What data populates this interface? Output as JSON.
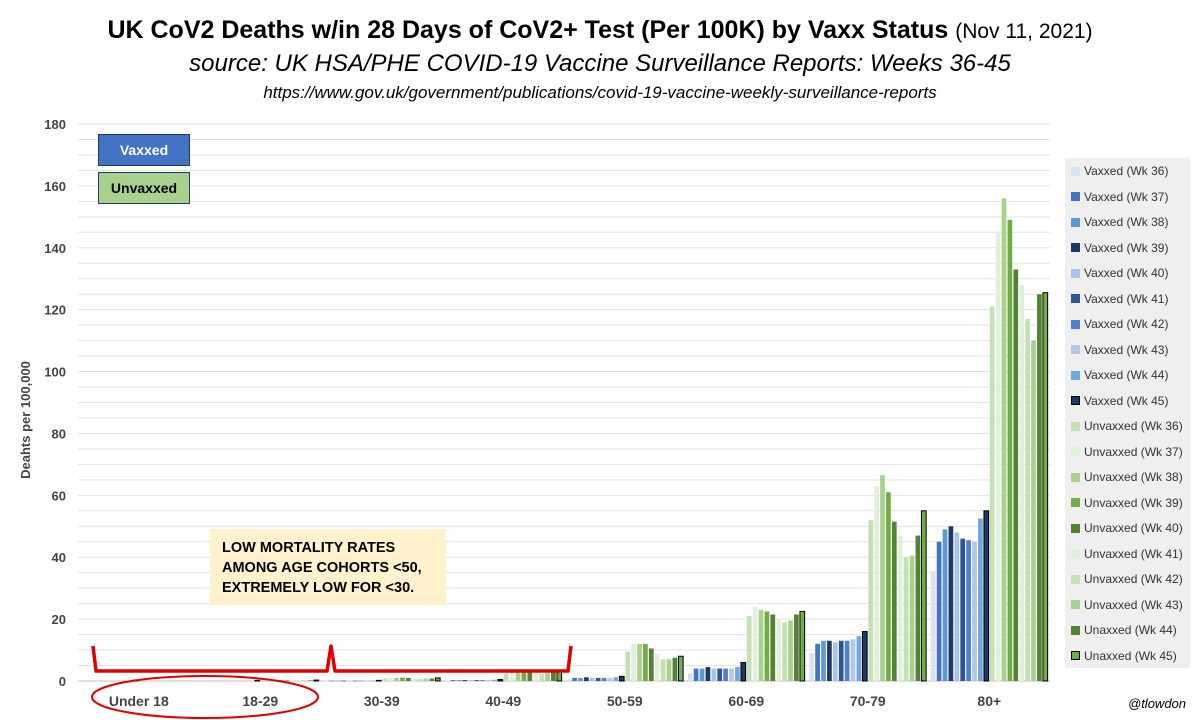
{
  "header": {
    "title": "UK CoV2 Deaths w/in 28 Days of CoV2+ Test (Per 100K) by Vaxx Status",
    "date": "(Nov 11, 2021)",
    "subtitle": "source: UK HSA/PHE COVID-19 Vaccine Surveillance Reports: Weeks 36-45",
    "url": "https://www.gov.uk/government/publications/covid-19-vaccine-weekly-surveillance-reports"
  },
  "key": {
    "vaxxed": "Vaxxed",
    "unvaxxed": "Unvaxxed"
  },
  "annotation": {
    "lines": [
      "LOW MORTALITY RATES",
      "AMONG AGE COHORTS <50,",
      "EXTREMELY LOW FOR <30."
    ]
  },
  "credit": "@tlowdon",
  "colors": {
    "vaxx_key": "#4472c4",
    "unvaxx_key": "#a9d18e",
    "bracket": "#e00000",
    "annotation_bg": "#fff2cc"
  },
  "chart_data": {
    "type": "bar",
    "ylabel": "Deahts per 100,000",
    "xlabel": "",
    "ylim": [
      0,
      180
    ],
    "yticks": [
      0,
      20,
      40,
      60,
      80,
      100,
      120,
      140,
      160,
      180
    ],
    "grid": true,
    "legend_position": "right",
    "categories": [
      "Under 18",
      "18-29",
      "30-39",
      "40-49",
      "50-59",
      "60-69",
      "70-79",
      "80+"
    ],
    "series": [
      {
        "name": "Vaxxed (Wk 36)",
        "color": "#d9e2f3",
        "values": [
          0,
          0,
          0.1,
          0.2,
          0.5,
          2.5,
          9,
          35.5
        ]
      },
      {
        "name": "Vaxxed (Wk 37)",
        "color": "#4472c4",
        "values": [
          0,
          0,
          0.1,
          0.3,
          1,
          4,
          12,
          45
        ]
      },
      {
        "name": "Vaxxed (Wk 38)",
        "color": "#5b9bd5",
        "values": [
          0,
          0,
          0.1,
          0.3,
          1,
          4,
          13,
          49
        ]
      },
      {
        "name": "Vaxxed (Wk 39)",
        "color": "#203864",
        "values": [
          0,
          0,
          0.1,
          0.3,
          1.2,
          4.5,
          13,
          50
        ]
      },
      {
        "name": "Vaxxed (Wk 40)",
        "color": "#a9c4eb",
        "values": [
          0,
          0,
          0.1,
          0.3,
          1,
          4,
          12.5,
          48
        ]
      },
      {
        "name": "Vaxxed (Wk 41)",
        "color": "#2e5597",
        "values": [
          0,
          0,
          0.1,
          0.3,
          1,
          4,
          13,
          46
        ]
      },
      {
        "name": "Vaxxed (Wk 42)",
        "color": "#4f81d1",
        "values": [
          0,
          0,
          0.1,
          0.3,
          1,
          4,
          13,
          45.5
        ]
      },
      {
        "name": "Vaxxed (Wk 43)",
        "color": "#b4c7e7",
        "values": [
          0,
          0,
          0.1,
          0.3,
          1,
          4,
          13.5,
          45
        ]
      },
      {
        "name": "Vaxxed (Wk 44)",
        "color": "#6fa8dc",
        "values": [
          0,
          0,
          0.1,
          0.4,
          1.2,
          4.5,
          14.5,
          52.5
        ]
      },
      {
        "name": "Vaxxed (Wk 45)",
        "color": "#1f3864",
        "outlined": true,
        "values": [
          0.3,
          0.2,
          0.2,
          0.5,
          1.5,
          6,
          16,
          55
        ]
      },
      {
        "name": "Unvaxxed (Wk 36)",
        "color": "#c5e0b4",
        "values": [
          0,
          0.2,
          0.8,
          2.5,
          9.5,
          21,
          52,
          121
        ]
      },
      {
        "name": "Unvaxxed (Wk 37)",
        "color": "#e2efda",
        "values": [
          0,
          0.3,
          1,
          3.5,
          12,
          24,
          63,
          145
        ]
      },
      {
        "name": "Unvaxxed (Wk 38)",
        "color": "#a9d18e",
        "values": [
          0,
          0.3,
          1,
          3.8,
          12,
          23,
          66.5,
          156
        ]
      },
      {
        "name": "Unvaxxed (Wk 39)",
        "color": "#70ad47",
        "values": [
          0,
          0.3,
          1.1,
          3.5,
          12,
          22.5,
          61,
          149
        ]
      },
      {
        "name": "Unvaxxed (Wk 40)",
        "color": "#548235",
        "values": [
          0,
          0.2,
          1,
          3,
          10.5,
          21.5,
          51.5,
          133
        ]
      },
      {
        "name": "Unvaxxed (Wk 41)",
        "color": "#e2efda",
        "values": [
          0,
          0.2,
          0.7,
          2.5,
          9,
          20,
          47,
          128
        ]
      },
      {
        "name": "Unvaxxed (Wk 42)",
        "color": "#c5e0b4",
        "values": [
          0,
          0.2,
          0.7,
          2.3,
          7,
          19,
          40,
          117
        ]
      },
      {
        "name": "Unvaxxed (Wk 43)",
        "color": "#a9d18e",
        "values": [
          0,
          0.2,
          0.8,
          2.5,
          7,
          19.5,
          40.5,
          110
        ]
      },
      {
        "name": "Unaxxed (Wk 44)",
        "color": "#548235",
        "values": [
          0,
          0.2,
          0.8,
          2.8,
          7.5,
          21.5,
          47,
          125
        ]
      },
      {
        "name": "Unaxxed (Wk 45)",
        "color": "#70ad47",
        "outlined": true,
        "values": [
          0,
          0.3,
          1,
          3,
          8,
          22.5,
          55,
          125.5
        ]
      }
    ]
  }
}
